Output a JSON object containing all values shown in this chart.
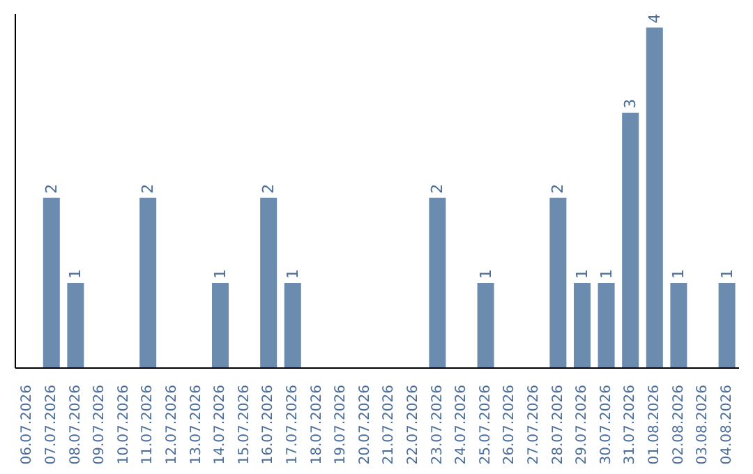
{
  "chart_data": {
    "type": "bar",
    "categories": [
      "06.07.2026",
      "07.07.2026",
      "08.07.2026",
      "09.07.2026",
      "10.07.2026",
      "11.07.2026",
      "12.07.2026",
      "13.07.2026",
      "14.07.2026",
      "15.07.2026",
      "16.07.2026",
      "17.07.2026",
      "18.07.2026",
      "19.07.2026",
      "20.07.2026",
      "21.07.2026",
      "22.07.2026",
      "23.07.2026",
      "24.07.2026",
      "25.07.2026",
      "26.07.2026",
      "27.07.2026",
      "28.07.2026",
      "29.07.2026",
      "30.07.2026",
      "31.07.2026",
      "01.08.2026",
      "02.08.2026",
      "03.08.2026",
      "04.08.2026"
    ],
    "values": [
      0,
      2,
      1,
      0,
      0,
      2,
      0,
      0,
      1,
      0,
      2,
      1,
      0,
      0,
      0,
      0,
      0,
      2,
      0,
      1,
      0,
      0,
      2,
      1,
      1,
      3,
      4,
      1,
      0,
      1
    ],
    "value_labels": [
      null,
      "2",
      "1",
      null,
      null,
      "2",
      null,
      null,
      "1",
      null,
      "2",
      "1",
      null,
      null,
      null,
      null,
      null,
      "2",
      null,
      "1",
      null,
      null,
      "2",
      "1",
      "1",
      "3",
      "4",
      "1",
      null,
      "1"
    ],
    "color": "#6b8caf",
    "tick_labels": "x",
    "grid": false,
    "legend": false
  }
}
